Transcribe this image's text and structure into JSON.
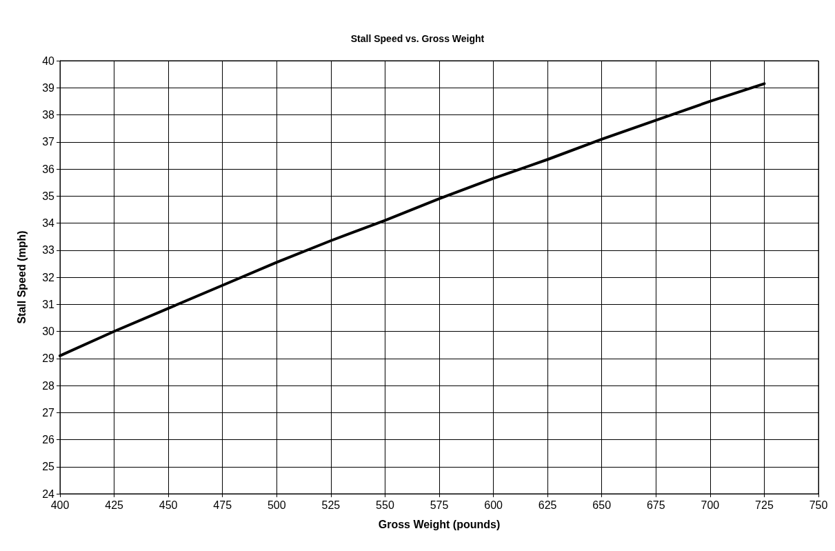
{
  "chart_data": {
    "type": "line",
    "title": "Stall Speed vs. Gross Weight",
    "xlabel": "Gross Weight (pounds)",
    "ylabel": "Stall Speed (mph)",
    "x": [
      400,
      425,
      450,
      475,
      500,
      525,
      550,
      575,
      600,
      625,
      650,
      675,
      700,
      725
    ],
    "series": [
      {
        "color": "#000000",
        "values": [
          29.1,
          30.0,
          30.85,
          31.7,
          32.55,
          33.35,
          34.1,
          34.9,
          35.65,
          36.35,
          37.1,
          37.8,
          38.5,
          39.15
        ]
      }
    ],
    "xlim": [
      400,
      750
    ],
    "xticks": [
      400,
      425,
      450,
      475,
      500,
      525,
      550,
      575,
      600,
      625,
      650,
      675,
      700,
      725,
      750
    ],
    "ylim": [
      24,
      40
    ],
    "yticks": [
      24,
      25,
      26,
      27,
      28,
      29,
      30,
      31,
      32,
      33,
      34,
      35,
      36,
      37,
      38,
      39,
      40
    ],
    "grid": true,
    "marker": "none",
    "line_style": "solid"
  }
}
